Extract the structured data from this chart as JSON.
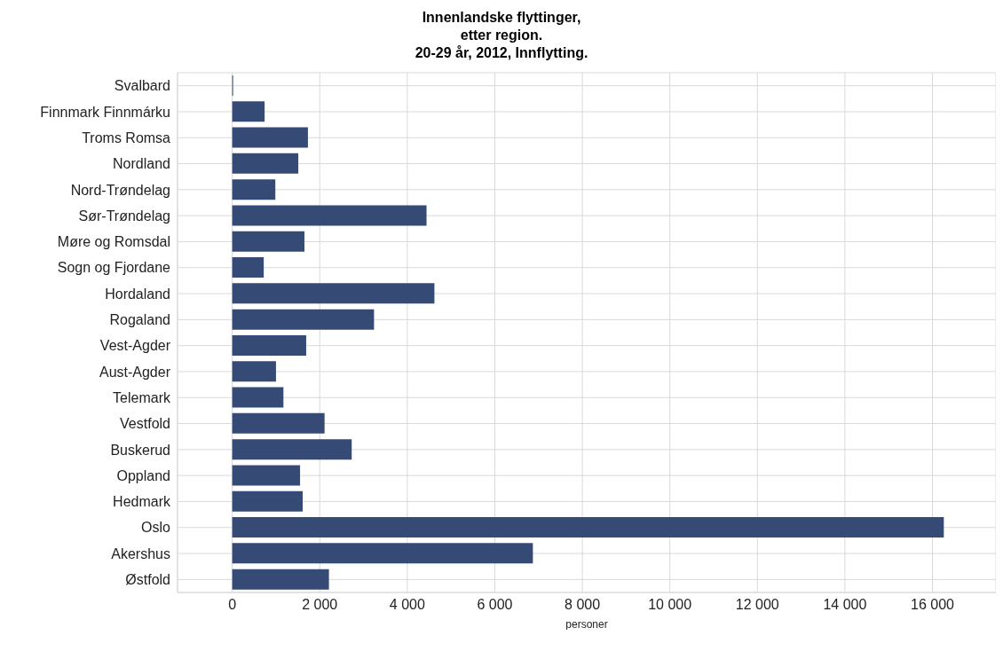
{
  "chart_data": {
    "type": "bar",
    "orientation": "horizontal",
    "title": "Innenlandske flyttinger,\netter region.\n20-29 år, 2012, Innflytting.",
    "xlabel": "personer",
    "categories": [
      "Svalbard",
      "Finnmark Finnmárku",
      "Troms Romsa",
      "Nordland",
      "Nord-Trøndelag",
      "Sør-Trøndelag",
      "Møre og Romsdal",
      "Sogn og Fjordane",
      "Hordaland",
      "Rogaland",
      "Vest-Agder",
      "Aust-Agder",
      "Telemark",
      "Vestfold",
      "Buskerud",
      "Oppland",
      "Hedmark",
      "Oslo",
      "Akershus",
      "Østfold"
    ],
    "values": [
      20,
      740,
      1730,
      1510,
      985,
      4440,
      1650,
      720,
      4620,
      3240,
      1690,
      1000,
      1170,
      2110,
      2730,
      1550,
      1610,
      16260,
      6870,
      2210
    ],
    "color": "#354a74",
    "xlim": [
      -1250,
      17450
    ],
    "xticks": [
      0,
      {
        "value": 2000,
        "label": "2 000"
      },
      {
        "value": 4000,
        "label": "4 000"
      },
      {
        "value": 6000,
        "label": "6 000"
      },
      {
        "value": 8000,
        "label": "8 000"
      },
      {
        "value": 10000,
        "label": "10 000"
      },
      {
        "value": 12000,
        "label": "12 000"
      },
      {
        "value": 14000,
        "label": "14 000"
      },
      {
        "value": 16000,
        "label": "16 000"
      }
    ],
    "grid": true
  }
}
